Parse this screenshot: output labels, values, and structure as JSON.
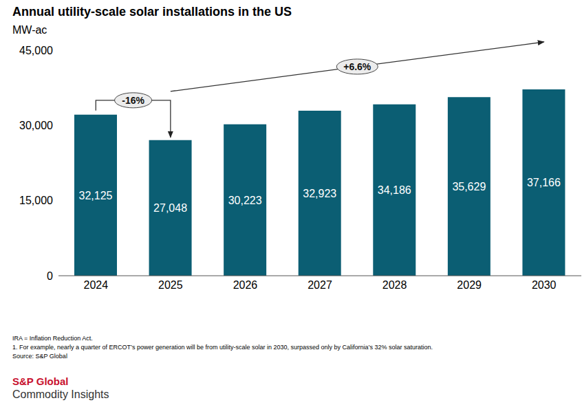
{
  "chart_data": {
    "type": "bar",
    "title": "Annual utility-scale solar installations in the US",
    "y_label": "MW-ac",
    "categories": [
      "2024",
      "2025",
      "2026",
      "2027",
      "2028",
      "2029",
      "2030"
    ],
    "values": [
      32125,
      27048,
      30223,
      32923,
      34186,
      35629,
      37166
    ],
    "value_labels": [
      "32,125",
      "27,048",
      "30,223",
      "32,923",
      "34,186",
      "35,629",
      "37,166"
    ],
    "color": "#0b5e73",
    "ylim": [
      0,
      45000
    ],
    "yticks": [
      0,
      {
        "value": 15000,
        "label": "15,000"
      },
      {
        "value": 30000,
        "label": "30,000"
      },
      {
        "value": 45000,
        "label": "45,000"
      }
    ],
    "grid": false,
    "data_labels": true,
    "annotations": [
      {
        "text": "-16%",
        "from": "2024",
        "to": "2025"
      },
      {
        "text": "+6.6%",
        "from": "2025",
        "to": "2030"
      }
    ],
    "notes": [
      "IRA = Inflation Reduction Act.",
      "1. For example, nearly a quarter of ERCOT’s power generation will be from utility-scale solar in 2030, surpassed only by California’s 32% solar saturation."
    ],
    "source": "Source: S&P Global",
    "logo": [
      "S&P Global",
      "Commodity Insights"
    ]
  }
}
